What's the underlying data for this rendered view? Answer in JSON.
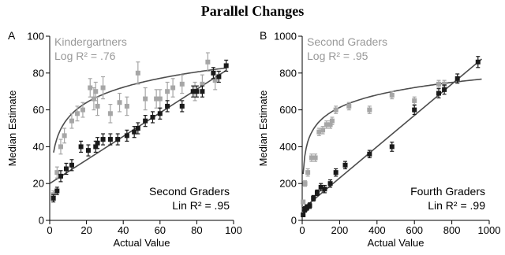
{
  "figure_title": "Parallel Changes",
  "colors": {
    "kinder": "#a6a6a6",
    "second": "#1a1a1a",
    "grey_text": "#999999",
    "fit": "#4d4d4d"
  },
  "chart_data": [
    {
      "panel_label": "A",
      "type": "scatter",
      "xlabel": "Actual Value",
      "ylabel": "Median Estimate",
      "xlim": [
        0,
        100
      ],
      "ylim": [
        0,
        100
      ],
      "xticks": [
        "0",
        "20",
        "40",
        "60",
        "80",
        "100"
      ],
      "yticks": [
        "0",
        "20",
        "40",
        "60",
        "80",
        "100"
      ],
      "grid": false,
      "series": [
        {
          "name": "Kindergartners",
          "fit": "Log R² = .76",
          "x": [
            2,
            4,
            6,
            8,
            12,
            15,
            18,
            22,
            24,
            25,
            26,
            29,
            33,
            38,
            42,
            48,
            52,
            58,
            60,
            64,
            67,
            72,
            79,
            83,
            86,
            90
          ],
          "y": [
            14,
            26,
            40,
            46,
            54,
            58,
            60,
            72,
            66,
            70,
            62,
            72,
            58,
            64,
            62,
            80,
            66,
            66,
            66,
            70,
            72,
            74,
            70,
            74,
            86,
            76
          ],
          "err": [
            2,
            3,
            4,
            4,
            4,
            4,
            4,
            5,
            6,
            5,
            5,
            6,
            5,
            5,
            5,
            6,
            6,
            5,
            5,
            5,
            5,
            5,
            5,
            5,
            5,
            5
          ]
        },
        {
          "name": "Second Graders",
          "fit": "Lin R² = .95",
          "x": [
            2,
            4,
            6,
            9,
            12,
            17,
            21,
            25,
            26,
            29,
            33,
            37,
            42,
            46,
            48,
            52,
            56,
            60,
            64,
            72,
            78,
            80,
            83,
            89,
            92,
            96
          ],
          "y": [
            12,
            16,
            24,
            28,
            30,
            40,
            38,
            40,
            42,
            44,
            44,
            44,
            46,
            48,
            50,
            54,
            56,
            58,
            62,
            62,
            70,
            70,
            70,
            80,
            78,
            84
          ],
          "err": [
            2,
            2,
            3,
            3,
            3,
            3,
            3,
            3,
            3,
            3,
            3,
            3,
            3,
            3,
            3,
            3,
            3,
            3,
            3,
            3,
            3,
            3,
            3,
            3,
            3,
            3
          ]
        }
      ]
    },
    {
      "panel_label": "B",
      "type": "scatter",
      "xlabel": "Actual Value",
      "ylabel": "Median Estimate",
      "xlim": [
        0,
        1000
      ],
      "ylim": [
        0,
        1000
      ],
      "xticks": [
        "0",
        "200",
        "400",
        "600",
        "800",
        "1000"
      ],
      "yticks": [
        "0",
        "200",
        "400",
        "600",
        "800",
        "1000"
      ],
      "grid": false,
      "series": [
        {
          "name": "Second Graders",
          "fit": "Log R² = .95",
          "x": [
            5,
            15,
            30,
            50,
            70,
            90,
            110,
            130,
            150,
            160,
            180,
            250,
            360,
            480,
            600,
            730,
            760
          ],
          "y": [
            100,
            200,
            260,
            340,
            340,
            480,
            490,
            520,
            520,
            540,
            600,
            620,
            600,
            680,
            650,
            740,
            740
          ],
          "err": [
            10,
            15,
            20,
            20,
            20,
            20,
            20,
            20,
            20,
            20,
            20,
            20,
            20,
            20,
            20,
            20,
            20
          ]
        },
        {
          "name": "Fourth Graders",
          "fit": "Lin R² = .99",
          "x": [
            5,
            15,
            25,
            40,
            60,
            80,
            100,
            120,
            150,
            180,
            230,
            360,
            480,
            600,
            730,
            760,
            830,
            940
          ],
          "y": [
            30,
            60,
            70,
            80,
            120,
            150,
            180,
            170,
            200,
            260,
            300,
            360,
            400,
            600,
            690,
            710,
            770,
            860
          ],
          "err": [
            10,
            15,
            15,
            15,
            15,
            15,
            20,
            20,
            20,
            20,
            20,
            20,
            25,
            25,
            25,
            25,
            25,
            30
          ]
        }
      ]
    }
  ]
}
